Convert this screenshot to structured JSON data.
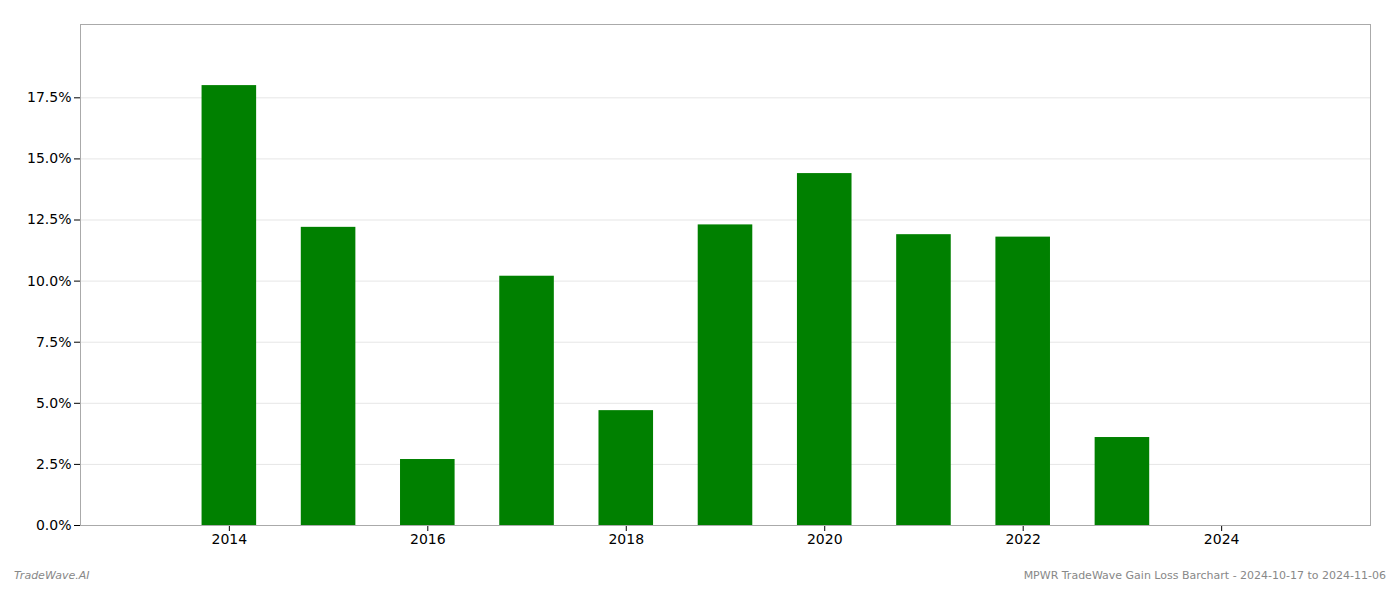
{
  "chart_data": {
    "type": "bar",
    "x": [
      2014,
      2015,
      2016,
      2017,
      2018,
      2019,
      2020,
      2021,
      2022,
      2023
    ],
    "values": [
      0.18,
      0.122,
      0.027,
      0.102,
      0.047,
      0.123,
      0.144,
      0.119,
      0.118,
      0.036
    ],
    "color": "#008000",
    "xlim": [
      2012.5,
      2025.5
    ],
    "xticks": [
      2014,
      2016,
      2018,
      2020,
      2022,
      2024
    ],
    "ylim": [
      0.0,
      0.205
    ],
    "yticks": [
      {
        "value": 0.0,
        "label": "0.0%"
      },
      {
        "value": 0.025,
        "label": "2.5%"
      },
      {
        "value": 0.05,
        "label": "5.0%"
      },
      {
        "value": 0.075,
        "label": "7.5%"
      },
      {
        "value": 0.1,
        "label": "10.0%"
      },
      {
        "value": 0.125,
        "label": "12.5%"
      },
      {
        "value": 0.15,
        "label": "15.0%"
      },
      {
        "value": 0.175,
        "label": "17.5%"
      }
    ],
    "grid": true,
    "annotations": [
      "TradeWave.AI",
      "MPWR TradeWave Gain Loss Barchart - 2024-10-17 to 2024-11-06"
    ]
  }
}
